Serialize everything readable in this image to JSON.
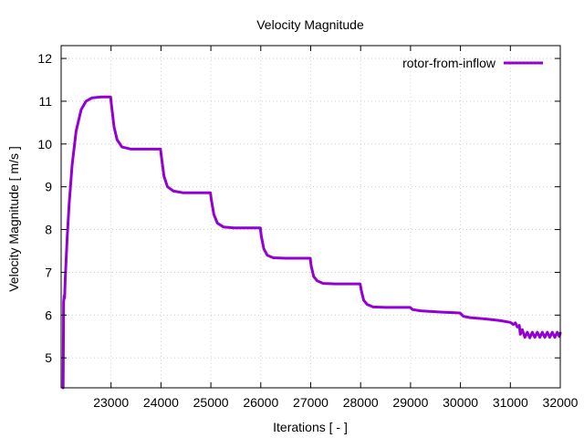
{
  "chart_data": {
    "type": "line",
    "title": "Velocity Magnitude",
    "xlabel": "Iterations [ - ]",
    "ylabel": "Velocity Magnitude [ m/s ]",
    "xlim": [
      22000,
      32000
    ],
    "ylim": [
      4.3,
      12.3
    ],
    "xticks": [
      23000,
      24000,
      25000,
      26000,
      27000,
      28000,
      29000,
      30000,
      31000,
      32000
    ],
    "yticks": [
      5,
      6,
      7,
      8,
      9,
      10,
      11,
      12
    ],
    "grid": true,
    "legend_position": "top-right",
    "series": [
      {
        "name": "rotor-from-inflow",
        "color": "#9400d3",
        "points": [
          [
            22040,
            4.3
          ],
          [
            22050,
            6.3
          ],
          [
            22060,
            6.45
          ],
          [
            22070,
            6.4
          ],
          [
            22080,
            6.8
          ],
          [
            22120,
            7.8
          ],
          [
            22160,
            8.6
          ],
          [
            22220,
            9.5
          ],
          [
            22300,
            10.3
          ],
          [
            22400,
            10.8
          ],
          [
            22500,
            11.0
          ],
          [
            22620,
            11.08
          ],
          [
            22800,
            11.1
          ],
          [
            22990,
            11.1
          ],
          [
            23010,
            10.9
          ],
          [
            23060,
            10.4
          ],
          [
            23120,
            10.1
          ],
          [
            23220,
            9.93
          ],
          [
            23400,
            9.88
          ],
          [
            23990,
            9.88
          ],
          [
            24010,
            9.7
          ],
          [
            24060,
            9.25
          ],
          [
            24130,
            9.0
          ],
          [
            24250,
            8.9
          ],
          [
            24450,
            8.86
          ],
          [
            24990,
            8.86
          ],
          [
            25010,
            8.7
          ],
          [
            25060,
            8.35
          ],
          [
            25130,
            8.15
          ],
          [
            25250,
            8.06
          ],
          [
            25450,
            8.04
          ],
          [
            25990,
            8.04
          ],
          [
            26010,
            7.85
          ],
          [
            26060,
            7.55
          ],
          [
            26130,
            7.4
          ],
          [
            26250,
            7.34
          ],
          [
            26500,
            7.33
          ],
          [
            26990,
            7.33
          ],
          [
            27010,
            7.15
          ],
          [
            27060,
            6.9
          ],
          [
            27130,
            6.8
          ],
          [
            27250,
            6.74
          ],
          [
            27500,
            6.73
          ],
          [
            27990,
            6.73
          ],
          [
            28010,
            6.6
          ],
          [
            28060,
            6.35
          ],
          [
            28130,
            6.25
          ],
          [
            28250,
            6.19
          ],
          [
            28500,
            6.18
          ],
          [
            28990,
            6.18
          ],
          [
            29040,
            6.13
          ],
          [
            29200,
            6.1
          ],
          [
            29600,
            6.07
          ],
          [
            29990,
            6.05
          ],
          [
            30060,
            5.97
          ],
          [
            30200,
            5.94
          ],
          [
            30500,
            5.91
          ],
          [
            30800,
            5.87
          ],
          [
            31000,
            5.83
          ],
          [
            31060,
            5.78
          ],
          [
            31100,
            5.82
          ],
          [
            31140,
            5.72
          ],
          [
            31180,
            5.76
          ],
          [
            31200,
            5.55
          ],
          [
            31240,
            5.66
          ],
          [
            31290,
            5.48
          ],
          [
            31340,
            5.6
          ],
          [
            31390,
            5.47
          ],
          [
            31440,
            5.6
          ],
          [
            31490,
            5.48
          ],
          [
            31540,
            5.6
          ],
          [
            31590,
            5.48
          ],
          [
            31640,
            5.6
          ],
          [
            31690,
            5.48
          ],
          [
            31740,
            5.6
          ],
          [
            31790,
            5.48
          ],
          [
            31840,
            5.6
          ],
          [
            31890,
            5.48
          ],
          [
            31940,
            5.6
          ],
          [
            31980,
            5.5
          ],
          [
            32000,
            5.58
          ]
        ]
      }
    ]
  }
}
